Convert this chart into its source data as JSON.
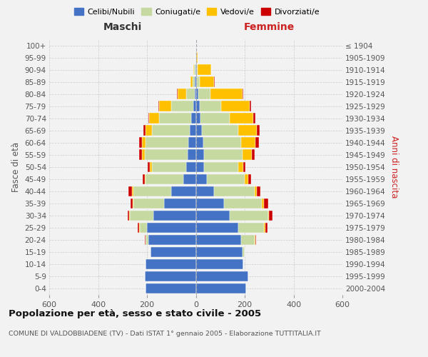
{
  "age_groups": [
    "0-4",
    "5-9",
    "10-14",
    "15-19",
    "20-24",
    "25-29",
    "30-34",
    "35-39",
    "40-44",
    "45-49",
    "50-54",
    "55-59",
    "60-64",
    "65-69",
    "70-74",
    "75-79",
    "80-84",
    "85-89",
    "90-94",
    "95-99",
    "100+"
  ],
  "birth_years": [
    "2000-2004",
    "1995-1999",
    "1990-1994",
    "1985-1989",
    "1980-1984",
    "1975-1979",
    "1970-1974",
    "1965-1969",
    "1960-1964",
    "1955-1959",
    "1950-1954",
    "1945-1949",
    "1940-1944",
    "1935-1939",
    "1930-1934",
    "1925-1929",
    "1920-1924",
    "1915-1919",
    "1910-1914",
    "1905-1909",
    "≤ 1904"
  ],
  "male": {
    "celibi": [
      205,
      210,
      205,
      185,
      195,
      200,
      175,
      130,
      100,
      50,
      40,
      35,
      30,
      25,
      20,
      10,
      5,
      3,
      2,
      1,
      1
    ],
    "coniugati": [
      0,
      0,
      0,
      0,
      10,
      30,
      95,
      125,
      155,
      155,
      140,
      175,
      175,
      155,
      130,
      90,
      35,
      10,
      5,
      1,
      0
    ],
    "vedovi": [
      0,
      0,
      0,
      0,
      2,
      2,
      2,
      3,
      5,
      5,
      8,
      10,
      15,
      25,
      40,
      50,
      35,
      8,
      2,
      0,
      0
    ],
    "divorziati": [
      0,
      0,
      0,
      0,
      2,
      5,
      8,
      8,
      15,
      8,
      10,
      12,
      12,
      10,
      5,
      2,
      1,
      0,
      0,
      0,
      0
    ]
  },
  "female": {
    "nubili": [
      205,
      215,
      195,
      190,
      185,
      175,
      140,
      115,
      75,
      45,
      35,
      35,
      30,
      25,
      20,
      15,
      10,
      5,
      3,
      2,
      1
    ],
    "coniugate": [
      0,
      0,
      0,
      10,
      55,
      105,
      155,
      155,
      165,
      155,
      140,
      155,
      155,
      150,
      120,
      90,
      50,
      10,
      5,
      0,
      0
    ],
    "vedove": [
      0,
      0,
      0,
      0,
      5,
      5,
      5,
      10,
      10,
      15,
      20,
      40,
      60,
      75,
      95,
      115,
      130,
      60,
      55,
      5,
      1
    ],
    "divorziate": [
      0,
      0,
      0,
      0,
      2,
      8,
      15,
      15,
      15,
      12,
      8,
      12,
      12,
      10,
      8,
      5,
      5,
      1,
      1,
      1,
      0
    ]
  },
  "color_celibi": "#4472c4",
  "color_coniugati": "#c5d9a0",
  "color_vedovi": "#ffc000",
  "color_divorziati": "#cc0000",
  "title": "Popolazione per età, sesso e stato civile - 2005",
  "subtitle": "COMUNE DI VALDOBBIADENE (TV) - Dati ISTAT 1° gennaio 2005 - Elaborazione TUTTITALIA.IT",
  "xlabel_left": "Maschi",
  "xlabel_right": "Femmine",
  "ylabel_left": "Fasce di età",
  "ylabel_right": "Anni di nascita",
  "xlim": 600,
  "bg_color": "#f2f2f2",
  "grid_color": "#cccccc"
}
